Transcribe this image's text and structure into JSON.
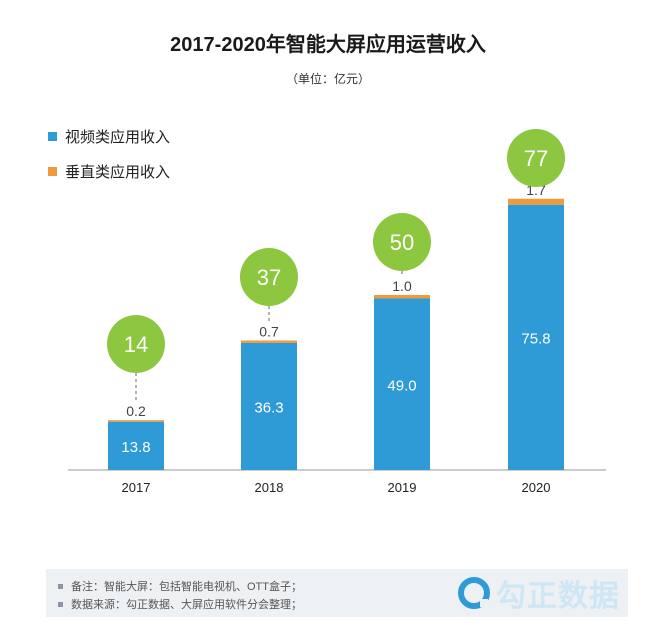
{
  "title": "2017-2020年智能大屏应用运营收入",
  "unit": "（单位：亿元）",
  "legend": [
    {
      "label": "视频类应用收入",
      "color": "#2e9ad6"
    },
    {
      "label": "垂直类应用收入",
      "color": "#f09a3e"
    }
  ],
  "chart_data": {
    "type": "bar",
    "stacked": true,
    "categories": [
      "2017",
      "2018",
      "2019",
      "2020"
    ],
    "series": [
      {
        "name": "视频类应用收入",
        "values": [
          13.8,
          36.3,
          49.0,
          75.8
        ],
        "labels": [
          "13.8",
          "36.3",
          "49.0",
          "75.8"
        ]
      },
      {
        "name": "垂直类应用收入",
        "values": [
          0.2,
          0.7,
          1.0,
          1.7
        ],
        "labels": [
          "0.2",
          "0.7",
          "1.0",
          "1.7"
        ]
      }
    ],
    "totals": [
      "14",
      "37",
      "50",
      "77"
    ],
    "ylim": [
      0,
      80
    ],
    "colors": {
      "video": "#2e9ad6",
      "vertical": "#f09a3e",
      "total_circle": "#8dc63f"
    },
    "legend_position": "top-left"
  },
  "footnotes": [
    "备注：智能大屏：包括智能电视机、OTT盒子；",
    "数据来源：勾正数据、大屏应用软件分会整理；"
  ],
  "logo": {
    "icon": "ring-logo-icon",
    "text": "勾正数据"
  }
}
